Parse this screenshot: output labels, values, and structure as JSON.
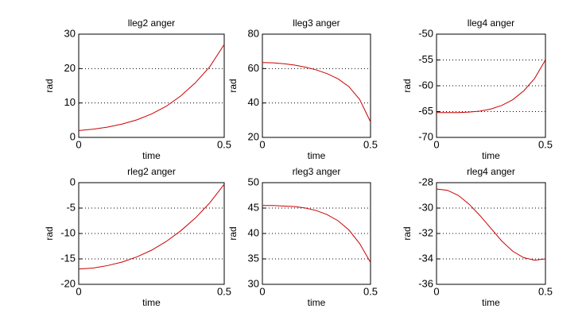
{
  "chart_data": [
    {
      "type": "line",
      "title": "lleg2 anger",
      "xlabel": "time",
      "ylabel": "rad",
      "color": "#cc0000",
      "grid": true,
      "x": [
        0,
        0.05,
        0.1,
        0.15,
        0.2,
        0.25,
        0.3,
        0.35,
        0.4,
        0.45,
        0.5
      ],
      "values": [
        2,
        2.4,
        3.0,
        3.9,
        5.1,
        6.8,
        9.0,
        12,
        15.8,
        20.5,
        27
      ],
      "xlim": [
        0,
        0.5
      ],
      "xticks": [
        0,
        0.5
      ],
      "ylim": [
        0,
        30
      ],
      "yticks": [
        0,
        10,
        20,
        30
      ]
    },
    {
      "type": "line",
      "title": "lleg3 anger",
      "xlabel": "time",
      "ylabel": "rad",
      "color": "#cc0000",
      "grid": true,
      "x": [
        0,
        0.05,
        0.1,
        0.15,
        0.2,
        0.25,
        0.3,
        0.35,
        0.4,
        0.45,
        0.5
      ],
      "values": [
        63.5,
        63.3,
        62.8,
        62,
        60.8,
        59.2,
        57,
        54,
        49.5,
        42,
        29
      ],
      "xlim": [
        0,
        0.5
      ],
      "xticks": [
        0,
        0.5
      ],
      "ylim": [
        20,
        80
      ],
      "yticks": [
        20,
        40,
        60,
        80
      ]
    },
    {
      "type": "line",
      "title": "lleg4 anger",
      "xlabel": "time",
      "ylabel": "rad",
      "color": "#cc0000",
      "grid": true,
      "x": [
        0,
        0.05,
        0.1,
        0.15,
        0.2,
        0.25,
        0.3,
        0.35,
        0.4,
        0.45,
        0.5
      ],
      "values": [
        -65.2,
        -65.2,
        -65.2,
        -65.1,
        -64.9,
        -64.5,
        -63.8,
        -62.7,
        -61,
        -58.6,
        -55
      ],
      "xlim": [
        0,
        0.5
      ],
      "xticks": [
        0,
        0.5
      ],
      "ylim": [
        -70,
        -50
      ],
      "yticks": [
        -70,
        -65,
        -60,
        -55,
        -50
      ]
    },
    {
      "type": "line",
      "title": "rleg2 anger",
      "xlabel": "time",
      "ylabel": "rad",
      "color": "#cc0000",
      "grid": true,
      "x": [
        0,
        0.05,
        0.1,
        0.15,
        0.2,
        0.25,
        0.3,
        0.35,
        0.4,
        0.45,
        0.5
      ],
      "values": [
        -17,
        -16.8,
        -16.3,
        -15.6,
        -14.6,
        -13.3,
        -11.6,
        -9.5,
        -7,
        -4,
        -0.3
      ],
      "xlim": [
        0,
        0.5
      ],
      "xticks": [
        0,
        0.5
      ],
      "ylim": [
        -20,
        0
      ],
      "yticks": [
        -20,
        -15,
        -10,
        -5,
        0
      ]
    },
    {
      "type": "line",
      "title": "rleg3 anger",
      "xlabel": "time",
      "ylabel": "rad",
      "color": "#cc0000",
      "grid": true,
      "x": [
        0,
        0.05,
        0.1,
        0.15,
        0.2,
        0.25,
        0.3,
        0.35,
        0.4,
        0.45,
        0.5
      ],
      "values": [
        45.5,
        45.5,
        45.4,
        45.3,
        45,
        44.5,
        43.7,
        42.5,
        40.7,
        38,
        34.3
      ],
      "xlim": [
        0,
        0.5
      ],
      "xticks": [
        0,
        0.5
      ],
      "ylim": [
        30,
        50
      ],
      "yticks": [
        30,
        35,
        40,
        45,
        50
      ]
    },
    {
      "type": "line",
      "title": "rleg4 anger",
      "xlabel": "time",
      "ylabel": "rad",
      "color": "#cc0000",
      "grid": true,
      "x": [
        0,
        0.05,
        0.1,
        0.15,
        0.2,
        0.25,
        0.3,
        0.35,
        0.4,
        0.45,
        0.5
      ],
      "values": [
        -28.5,
        -28.6,
        -29.0,
        -29.7,
        -30.6,
        -31.6,
        -32.6,
        -33.4,
        -33.9,
        -34.1,
        -34.0
      ],
      "xlim": [
        0,
        0.5
      ],
      "xticks": [
        0,
        0.5
      ],
      "ylim": [
        -36,
        -28
      ],
      "yticks": [
        -36,
        -34,
        -32,
        -30,
        -28
      ]
    }
  ]
}
